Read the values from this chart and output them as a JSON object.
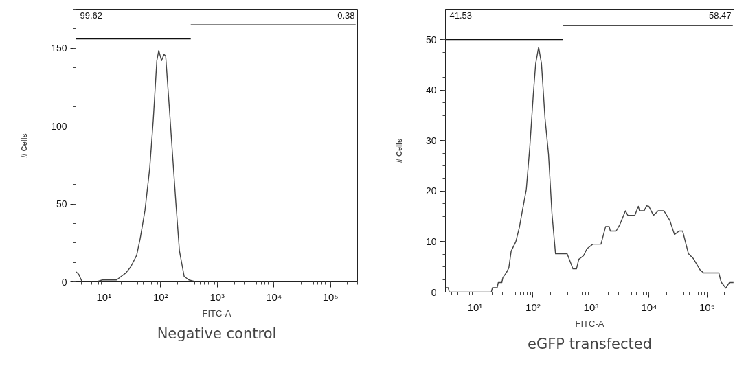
{
  "chart_data": [
    {
      "type": "line",
      "title": "Negative control",
      "xlabel": "FITC-A",
      "ylabel": "# Cells",
      "log": "x",
      "grid": false,
      "marker": "none",
      "line_style": "solid",
      "xlim": [
        3.2,
        300000
      ],
      "xticks": [
        {
          "value": 10,
          "label": "10¹"
        },
        {
          "value": 100,
          "label": "10²"
        },
        {
          "value": 1000,
          "label": "10³"
        },
        {
          "value": 10000,
          "label": "10⁴"
        },
        {
          "value": 100000,
          "label": "10⁵"
        }
      ],
      "ylim": [
        0,
        175
      ],
      "yticks": [
        0,
        50,
        100,
        150
      ],
      "series": [
        {
          "color": "#444444",
          "x": [
            3.2,
            3.57,
            4.12,
            7.35,
            9.35,
            16.7,
            20.2,
            24.5,
            29.7,
            37.8,
            43.8,
            53.1,
            64.3,
            74.3,
            85.9,
            92.9,
            104,
            115,
            123,
            142,
            161,
            186,
            215,
            261,
            316,
            422,
            300000
          ],
          "values": [
            6.5,
            5,
            0,
            0,
            1.2,
            1.2,
            3.5,
            5.8,
            9.6,
            17,
            28,
            46,
            73,
            104,
            142,
            148.5,
            142,
            146,
            145,
            113,
            84,
            51,
            20,
            3.5,
            1.2,
            0,
            0
          ]
        },
        {
          "color": "#111111",
          "x": [
            3.2,
            341
          ],
          "values": [
            156,
            156
          ]
        },
        {
          "color": "#111111",
          "x": [
            341,
            278000
          ],
          "values": [
            165,
            165
          ]
        }
      ],
      "annotations": [
        "99.62",
        "0.38"
      ]
    },
    {
      "type": "line",
      "title": "eGFP transfected",
      "xlabel": "FITC-A",
      "ylabel": "# Cells",
      "log": "x",
      "grid": false,
      "marker": "none",
      "line_style": "solid",
      "xlim": [
        3.1,
        290000
      ],
      "xticks": [
        {
          "value": 10,
          "label": "10¹"
        },
        {
          "value": 100,
          "label": "10²"
        },
        {
          "value": 1000,
          "label": "10³"
        },
        {
          "value": 10000,
          "label": "10⁴"
        },
        {
          "value": 100000,
          "label": "10⁵"
        }
      ],
      "ylim": [
        0,
        56
      ],
      "yticks": [
        0,
        10,
        20,
        30,
        40,
        50
      ],
      "series": [
        {
          "color": "#444444",
          "x": [
            3.14,
            3.45,
            3.61,
            19.1,
            20.0,
            24.1,
            25.2,
            29.0,
            30.3,
            34.9,
            38.3,
            42.0,
            50.6,
            58.1,
            66.7,
            76.6,
            88.1,
            101,
            111,
            125,
            140,
            161,
            185,
            212,
            244,
            387,
            488,
            561,
            615,
            740,
            851,
            1072,
            1482,
            1782,
            2050,
            2147,
            2705,
            3107,
            3917,
            4295,
            5675,
            6516,
            6823,
            8220,
            9015,
            9890,
            11890,
            14320,
            18030,
            22760,
            27360,
            32940,
            37840,
            47650,
            57410,
            75700,
            87060,
            158900,
            174200,
            209700,
            241000,
            284400
          ],
          "values": [
            0.9,
            0.9,
            0,
            0,
            0.9,
            0.9,
            1.9,
            1.9,
            2.9,
            3.9,
            4.8,
            8.1,
            10,
            12.8,
            16.6,
            20.3,
            28.8,
            39,
            45.2,
            48.5,
            45.2,
            34.4,
            27.3,
            15.6,
            7.6,
            7.6,
            4.6,
            4.6,
            6.5,
            7.2,
            8.6,
            9.5,
            9.5,
            13,
            13,
            12.1,
            12.1,
            13.3,
            16.1,
            15.2,
            15.2,
            17,
            16.1,
            16.1,
            17.1,
            17,
            15.2,
            16.1,
            16.1,
            14.2,
            11.4,
            12.1,
            12.1,
            7.6,
            6.7,
            4.4,
            3.8,
            3.8,
            2.0,
            0.8,
            1.9,
            1.9
          ]
        },
        {
          "color": "#111111",
          "x": [
            3.1,
            331
          ],
          "values": [
            50,
            50
          ]
        },
        {
          "color": "#111111",
          "x": [
            331,
            276700
          ],
          "values": [
            52.8,
            52.8
          ]
        }
      ],
      "annotations": [
        "41.53",
        "58.47"
      ]
    }
  ]
}
